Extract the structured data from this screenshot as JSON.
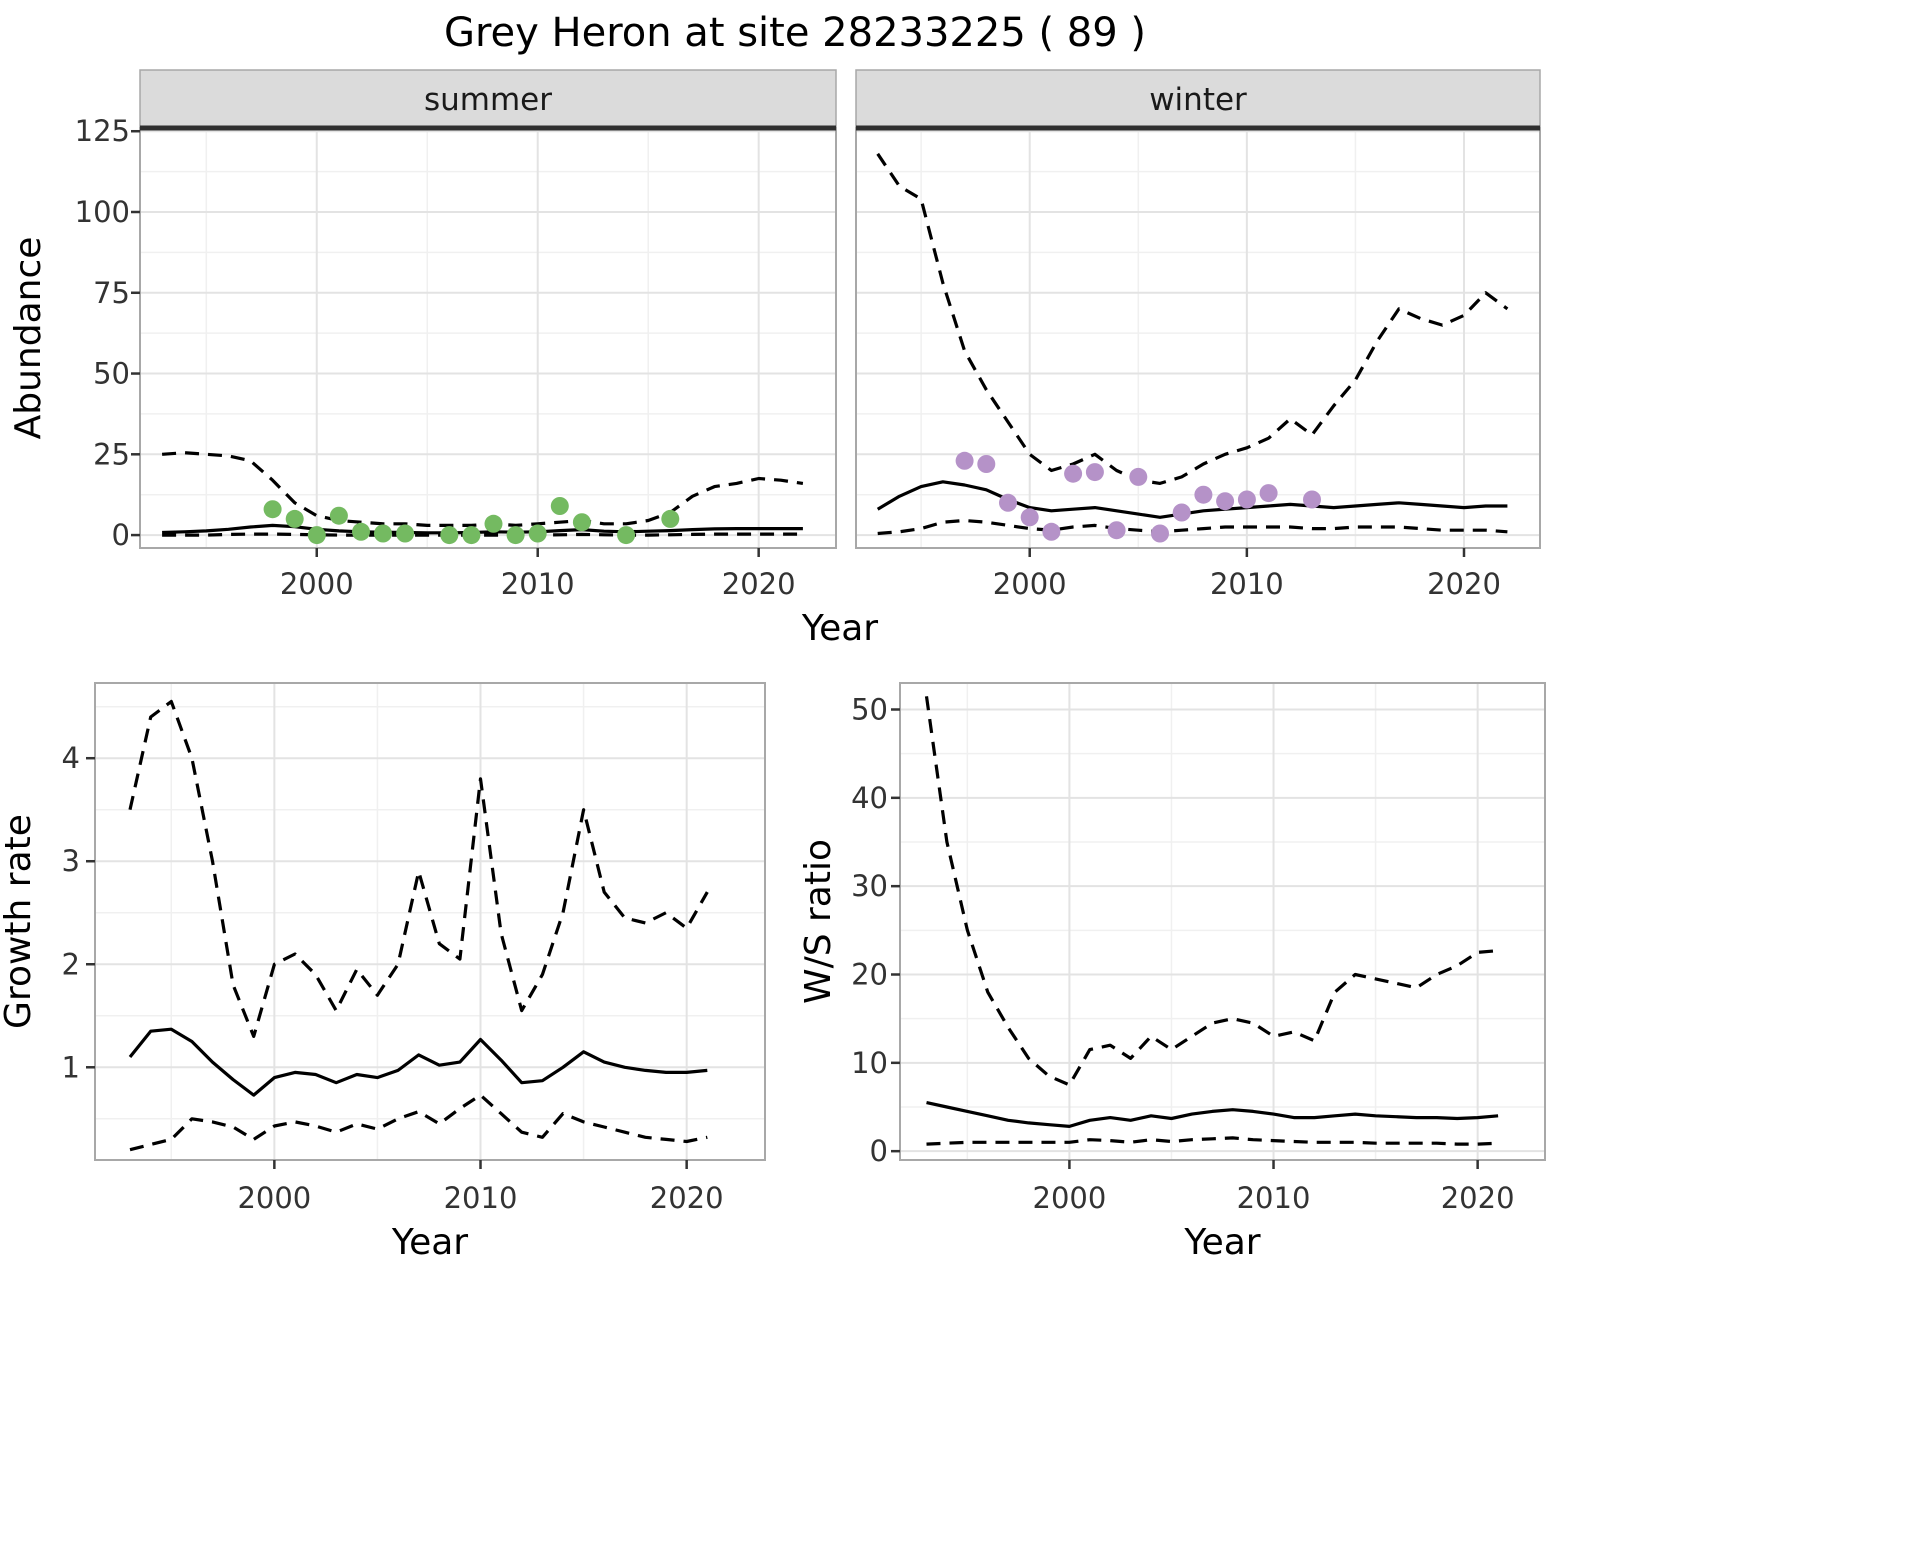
{
  "style": {
    "strip_bg": "#dbdbdb",
    "line_color": "#000000",
    "grid_major": "#e3e3e3",
    "grid_minor": "#f0f0f0",
    "panel_border": "#a8a8a8",
    "strip_underline": "#2f2f2f"
  },
  "chart_data": [
    {
      "id": "abundance",
      "type": "line",
      "title": "Grey Heron at site 28233225 ( 89 )",
      "xlabel": "Year",
      "ylabel": "Abundance",
      "xlim": [
        1992,
        2023.5
      ],
      "ylim": [
        -4,
        126
      ],
      "xticks": [
        2000,
        2010,
        2020
      ],
      "yticks": [
        0,
        25,
        50,
        75,
        100,
        125
      ],
      "grid": true,
      "legend": "none",
      "x": [
        1993,
        1994,
        1995,
        1996,
        1997,
        1998,
        1999,
        2000,
        2001,
        2002,
        2003,
        2004,
        2005,
        2006,
        2007,
        2008,
        2009,
        2010,
        2011,
        2012,
        2013,
        2014,
        2015,
        2016,
        2017,
        2018,
        2019,
        2020,
        2021,
        2022
      ],
      "facets": [
        {
          "label": "summer",
          "lines": [
            {
              "name": "upper-ci",
              "style": "dashed",
              "y": [
                25,
                25.5,
                25,
                24.5,
                23,
                17,
                10,
                6,
                4.5,
                4,
                3.5,
                3.5,
                3,
                3,
                3,
                3.5,
                3,
                3.5,
                4,
                4.5,
                3.5,
                3.5,
                4.5,
                7,
                12,
                15,
                16,
                17.5,
                17,
                16
              ]
            },
            {
              "name": "fit",
              "style": "solid",
              "y": [
                0.8,
                1,
                1.3,
                1.8,
                2.5,
                3,
                2.6,
                1.8,
                1.3,
                1,
                0.9,
                0.8,
                0.7,
                0.7,
                0.8,
                1,
                0.9,
                1,
                1.4,
                1.7,
                1.2,
                1,
                1.2,
                1.4,
                1.7,
                1.9,
                2,
                2,
                2,
                2
              ]
            },
            {
              "name": "lower-ci",
              "style": "dashed",
              "y": [
                0,
                0,
                0,
                0.2,
                0.3,
                0.3,
                0.2,
                0.1,
                0,
                0,
                0,
                0,
                0,
                0,
                0,
                0,
                0,
                0,
                0.1,
                0.2,
                0.1,
                0,
                0,
                0.1,
                0.2,
                0.3,
                0.3,
                0.3,
                0.3,
                0.3
              ]
            }
          ],
          "points": [
            {
              "name": "observed",
              "color": "#74ba61",
              "x": [
                1998,
                1999,
                2000,
                2001,
                2002,
                2003,
                2004,
                2006,
                2007,
                2008,
                2009,
                2010,
                2011,
                2012,
                2014,
                2016
              ],
              "y": [
                8,
                5,
                0,
                6,
                1,
                0.5,
                0.5,
                0,
                0,
                3.5,
                0,
                0.5,
                9,
                4,
                0,
                5
              ]
            }
          ]
        },
        {
          "label": "winter",
          "lines": [
            {
              "name": "upper-ci",
              "style": "dashed",
              "y": [
                118,
                108,
                104,
                78,
                57,
                45,
                35,
                25,
                20,
                22,
                25,
                20,
                17,
                16,
                18,
                22,
                25,
                27,
                30,
                36,
                31,
                40,
                48,
                60,
                70,
                67,
                65,
                68,
                75,
                70
              ]
            },
            {
              "name": "fit",
              "style": "solid",
              "y": [
                8,
                12,
                15,
                16.5,
                15.5,
                14,
                11,
                8.5,
                7.5,
                8,
                8.5,
                7.5,
                6.5,
                5.5,
                6.5,
                7.5,
                8,
                8.5,
                9,
                9.5,
                9,
                8.5,
                9,
                9.5,
                10,
                9.5,
                9,
                8.5,
                9,
                9
              ]
            },
            {
              "name": "lower-ci",
              "style": "dashed",
              "y": [
                0.5,
                1,
                2,
                4,
                4.5,
                4,
                3,
                2,
                1.5,
                2.5,
                3,
                2,
                1.5,
                1,
                1.5,
                2,
                2.5,
                2.5,
                2.5,
                2.5,
                2,
                2,
                2.5,
                2.5,
                2.5,
                2,
                1.5,
                1.5,
                1.5,
                1
              ]
            }
          ],
          "points": [
            {
              "name": "observed",
              "color": "#b592c8",
              "x": [
                1997,
                1998,
                1999,
                2000,
                2001,
                2002,
                2003,
                2004,
                2005,
                2006,
                2007,
                2008,
                2009,
                2010,
                2011,
                2013
              ],
              "y": [
                23,
                22,
                10,
                5.5,
                1,
                19,
                19.5,
                1.5,
                18,
                0.5,
                7,
                12.5,
                10.5,
                11,
                13,
                11
              ]
            }
          ]
        }
      ]
    },
    {
      "id": "growth",
      "type": "line",
      "title": "",
      "xlabel": "Year",
      "ylabel": "Growth rate",
      "xlim": [
        1991.3,
        2023.8
      ],
      "ylim": [
        0.1,
        4.73
      ],
      "xticks": [
        2000,
        2010,
        2020
      ],
      "yticks": [
        1,
        2,
        3,
        4
      ],
      "grid": true,
      "legend": "none",
      "x": [
        1993,
        1994,
        1995,
        1996,
        1997,
        1998,
        1999,
        2000,
        2001,
        2002,
        2003,
        2004,
        2005,
        2006,
        2007,
        2008,
        2009,
        2010,
        2011,
        2012,
        2013,
        2014,
        2015,
        2016,
        2017,
        2018,
        2019,
        2020,
        2021
      ],
      "facets": [
        {
          "label": null,
          "lines": [
            {
              "name": "upper-ci",
              "style": "dashed",
              "y": [
                3.5,
                4.4,
                4.55,
                4.0,
                3.0,
                1.8,
                1.3,
                2.0,
                2.1,
                1.9,
                1.55,
                1.95,
                1.7,
                2.0,
                2.9,
                2.2,
                2.05,
                3.8,
                2.3,
                1.55,
                1.9,
                2.5,
                3.5,
                2.7,
                2.45,
                2.4,
                2.5,
                2.35,
                2.7
              ]
            },
            {
              "name": "fit",
              "style": "solid",
              "y": [
                1.1,
                1.35,
                1.37,
                1.25,
                1.05,
                0.88,
                0.73,
                0.9,
                0.95,
                0.93,
                0.85,
                0.93,
                0.9,
                0.97,
                1.12,
                1.02,
                1.05,
                1.27,
                1.07,
                0.85,
                0.87,
                1.0,
                1.15,
                1.05,
                1.0,
                0.97,
                0.95,
                0.95,
                0.97
              ]
            },
            {
              "name": "lower-ci",
              "style": "dashed",
              "y": [
                0.2,
                0.25,
                0.3,
                0.5,
                0.47,
                0.42,
                0.3,
                0.43,
                0.47,
                0.43,
                0.37,
                0.45,
                0.4,
                0.5,
                0.57,
                0.45,
                0.6,
                0.73,
                0.55,
                0.37,
                0.32,
                0.55,
                0.47,
                0.42,
                0.37,
                0.32,
                0.3,
                0.28,
                0.32
              ]
            }
          ],
          "points": []
        }
      ]
    },
    {
      "id": "ws_ratio",
      "type": "line",
      "title": "",
      "xlabel": "Year",
      "ylabel": "W/S ratio",
      "xlim": [
        1991.7,
        2023.3
      ],
      "ylim": [
        -1,
        53
      ],
      "xticks": [
        2000,
        2010,
        2020
      ],
      "yticks": [
        0,
        10,
        20,
        30,
        40,
        50
      ],
      "grid": true,
      "legend": "none",
      "x": [
        1993,
        1994,
        1995,
        1996,
        1997,
        1998,
        1999,
        2000,
        2001,
        2002,
        2003,
        2004,
        2005,
        2006,
        2007,
        2008,
        2009,
        2010,
        2011,
        2012,
        2013,
        2014,
        2015,
        2016,
        2017,
        2018,
        2019,
        2020,
        2021
      ],
      "facets": [
        {
          "label": null,
          "lines": [
            {
              "name": "upper-ci",
              "style": "dashed",
              "y": [
                51.5,
                35,
                25,
                18,
                14,
                10.5,
                8.5,
                7.5,
                11.5,
                12,
                10.5,
                13,
                11.5,
                13,
                14.5,
                15,
                14.5,
                13,
                13.5,
                12.5,
                18,
                20,
                19.5,
                19,
                18.5,
                20,
                21,
                22.5,
                22.7
              ]
            },
            {
              "name": "fit",
              "style": "solid",
              "y": [
                5.5,
                5,
                4.5,
                4,
                3.5,
                3.2,
                3,
                2.8,
                3.5,
                3.8,
                3.5,
                4,
                3.7,
                4.2,
                4.5,
                4.7,
                4.5,
                4.2,
                3.8,
                3.8,
                4,
                4.2,
                4,
                3.9,
                3.8,
                3.8,
                3.7,
                3.8,
                4
              ]
            },
            {
              "name": "lower-ci",
              "style": "dashed",
              "y": [
                0.8,
                0.9,
                1,
                1,
                1,
                1,
                1,
                1,
                1.3,
                1.2,
                1,
                1.3,
                1.1,
                1.3,
                1.4,
                1.5,
                1.3,
                1.2,
                1.1,
                1,
                1,
                1,
                0.9,
                0.9,
                0.9,
                0.9,
                0.8,
                0.8,
                0.9
              ]
            }
          ],
          "points": []
        }
      ]
    }
  ]
}
